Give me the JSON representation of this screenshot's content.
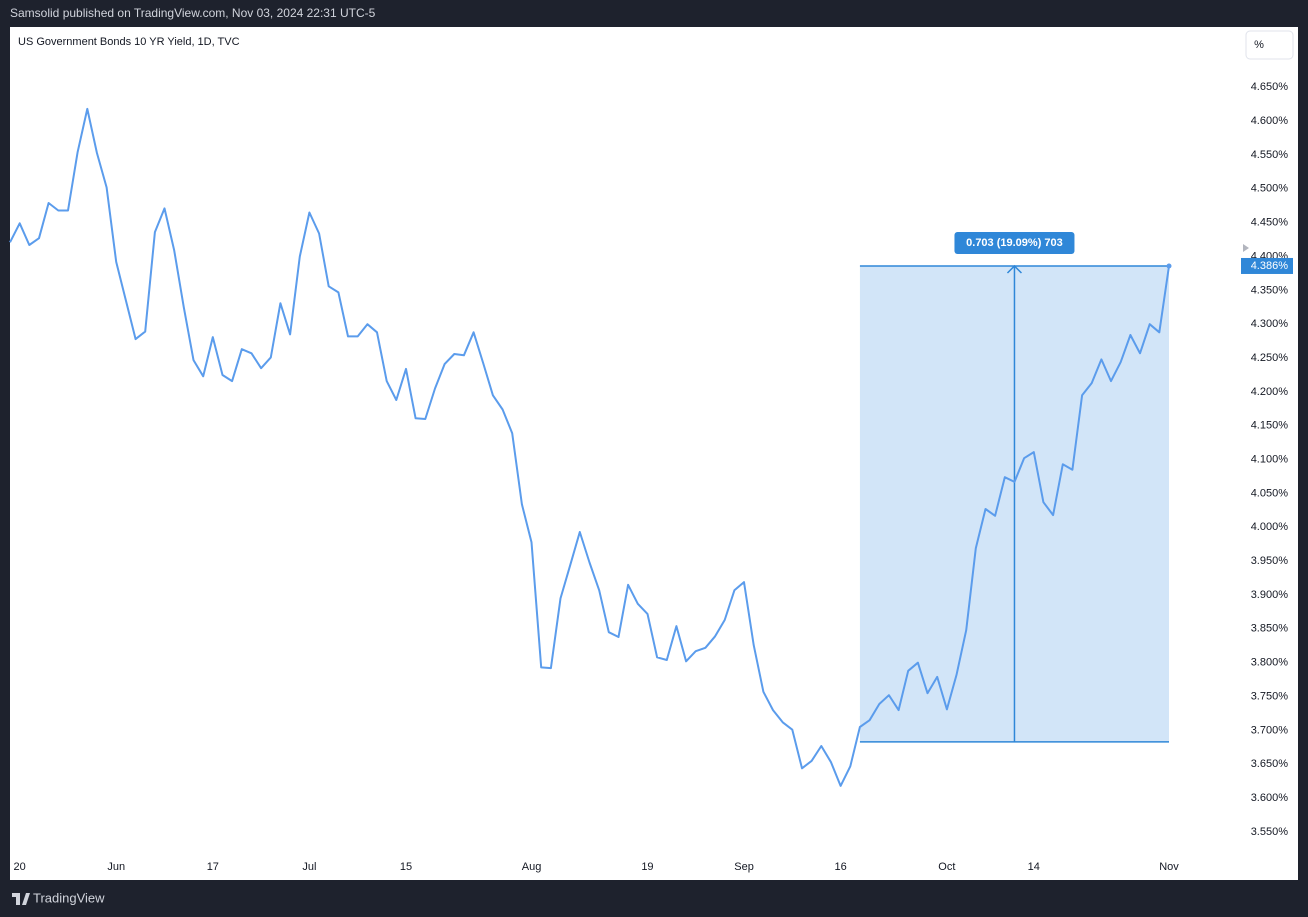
{
  "header": "Samsolid published on TradingView.com, Nov 03, 2024 22:31 UTC-5",
  "footer": "TradingView",
  "scale_button": "%",
  "chart_data": {
    "type": "line",
    "title": "US Government Bonds 10 YR Yield, 1D, TVC",
    "color": "#5b9cec",
    "categories": [
      null,
      "20",
      null,
      null,
      null,
      null,
      null,
      null,
      null,
      null,
      null,
      "Jun",
      null,
      null,
      null,
      null,
      null,
      null,
      null,
      null,
      null,
      "17",
      null,
      null,
      null,
      null,
      null,
      null,
      null,
      null,
      null,
      "Jul",
      null,
      null,
      null,
      null,
      null,
      null,
      null,
      null,
      null,
      "15",
      null,
      null,
      null,
      null,
      null,
      null,
      null,
      null,
      null,
      null,
      null,
      null,
      "Aug",
      null,
      null,
      null,
      null,
      null,
      null,
      null,
      null,
      null,
      null,
      null,
      "19",
      null,
      null,
      null,
      null,
      null,
      null,
      null,
      null,
      null,
      "Sep",
      null,
      null,
      null,
      null,
      null,
      null,
      null,
      null,
      null,
      "16",
      null,
      null,
      null,
      null,
      null,
      null,
      null,
      null,
      null,
      null,
      "Oct",
      null,
      null,
      null,
      null,
      null,
      null,
      null,
      null,
      "14",
      null,
      null,
      null,
      null,
      null,
      null,
      null,
      null,
      null,
      null,
      null,
      null,
      null,
      "Nov"
    ],
    "values": [
      4.421,
      4.449,
      4.417,
      4.427,
      4.479,
      4.468,
      4.468,
      4.554,
      4.618,
      4.553,
      4.502,
      4.392,
      4.335,
      4.278,
      4.289,
      4.436,
      4.471,
      4.409,
      4.325,
      4.247,
      4.223,
      4.281,
      4.225,
      4.216,
      4.263,
      4.257,
      4.235,
      4.251,
      4.331,
      4.285,
      4.4,
      4.465,
      4.434,
      4.356,
      4.347,
      4.282,
      4.282,
      4.3,
      4.288,
      4.216,
      4.188,
      4.234,
      4.161,
      4.16,
      4.205,
      4.241,
      4.256,
      4.254,
      4.288,
      4.242,
      4.195,
      4.174,
      4.139,
      4.034,
      3.978,
      3.793,
      3.792,
      3.895,
      3.944,
      3.993,
      3.948,
      3.907,
      3.845,
      3.838,
      3.915,
      3.887,
      3.872,
      3.808,
      3.804,
      3.854,
      3.802,
      3.817,
      3.822,
      3.839,
      3.863,
      3.907,
      3.919,
      3.826,
      3.757,
      3.73,
      3.712,
      3.701,
      3.644,
      3.655,
      3.677,
      3.653,
      3.618,
      3.647,
      3.705,
      3.715,
      3.739,
      3.752,
      3.73,
      3.788,
      3.8,
      3.755,
      3.779,
      3.731,
      3.782,
      3.848,
      3.969,
      4.027,
      4.017,
      4.074,
      4.067,
      4.102,
      4.111,
      4.037,
      4.018,
      4.093,
      4.085,
      4.195,
      4.213,
      4.248,
      4.216,
      4.244,
      4.284,
      4.257,
      4.3,
      4.288,
      4.386
    ],
    "last_value_label": "4.386%",
    "ylim": [
      3.479,
      4.739
    ],
    "yticks": [
      {
        "value": 4.65,
        "label": "4.650%"
      },
      {
        "value": 4.6,
        "label": "4.600%"
      },
      {
        "value": 4.55,
        "label": "4.550%"
      },
      {
        "value": 4.5,
        "label": "4.500%"
      },
      {
        "value": 4.45,
        "label": "4.450%"
      },
      {
        "value": 4.4,
        "label": "4.400%"
      },
      {
        "value": 4.35,
        "label": "4.350%"
      },
      {
        "value": 4.3,
        "label": "4.300%"
      },
      {
        "value": 4.25,
        "label": "4.250%"
      },
      {
        "value": 4.2,
        "label": "4.200%"
      },
      {
        "value": 4.15,
        "label": "4.150%"
      },
      {
        "value": 4.1,
        "label": "4.100%"
      },
      {
        "value": 4.05,
        "label": "4.050%"
      },
      {
        "value": 4.0,
        "label": "4.000%"
      },
      {
        "value": 3.95,
        "label": "3.950%"
      },
      {
        "value": 3.9,
        "label": "3.900%"
      },
      {
        "value": 3.85,
        "label": "3.850%"
      },
      {
        "value": 3.8,
        "label": "3.800%"
      },
      {
        "value": 3.75,
        "label": "3.750%"
      },
      {
        "value": 3.7,
        "label": "3.700%"
      },
      {
        "value": 3.65,
        "label": "3.650%"
      },
      {
        "value": 3.6,
        "label": "3.600%"
      },
      {
        "value": 3.55,
        "label": "3.550%"
      }
    ],
    "grid": false,
    "measure": {
      "label": "0.703 (19.09%) 703",
      "low": 3.683,
      "high": 4.386,
      "start": 88,
      "end": 120,
      "color": "#2f87d8",
      "fill": "#d2e5f8"
    }
  }
}
